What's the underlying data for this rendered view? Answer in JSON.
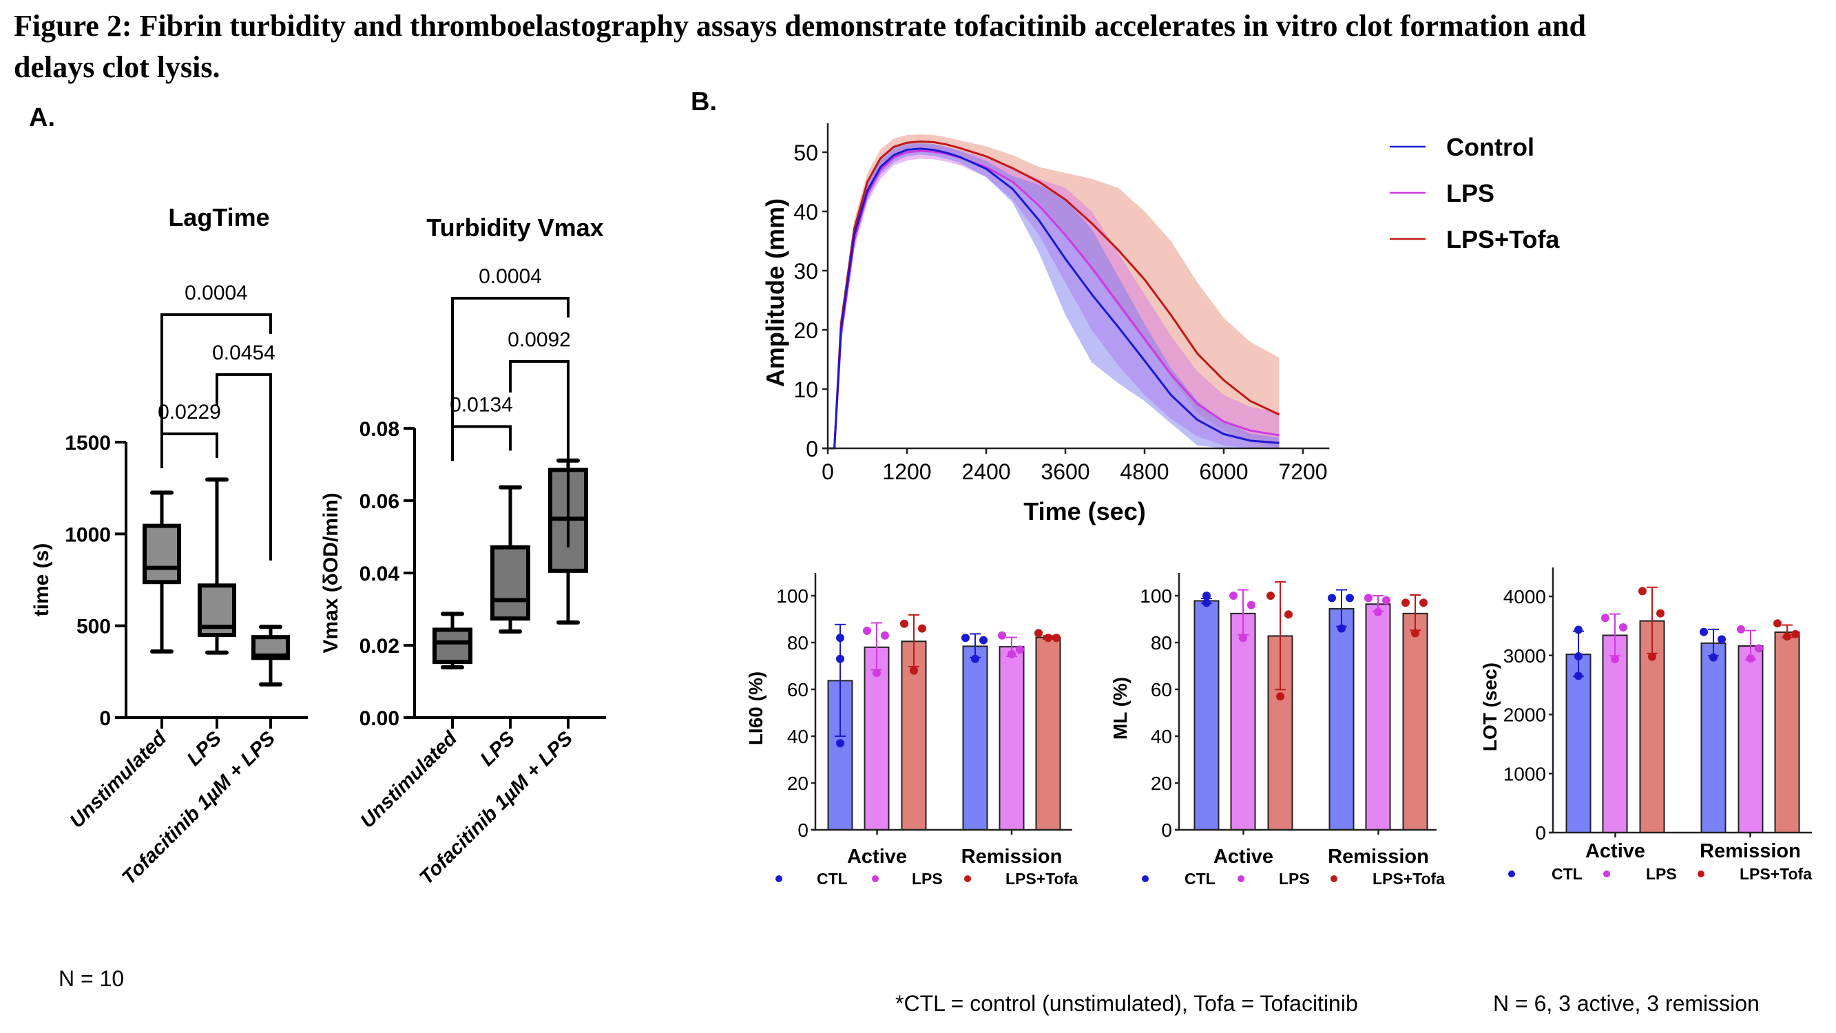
{
  "figure": {
    "title_line1": "Figure 2: Fibrin turbidity and thromboelastography assays demonstrate tofacitinib accelerates in vitro clot formation and",
    "title_line2": "delays clot lysis.",
    "panel_a_label": "A.",
    "panel_b_label": "B.",
    "panel_a_note": "N = 10",
    "footnote_abbrev": "*CTL = control (unstimulated), Tofa = Tofacitinib",
    "footnote_n": "N = 6, 3 active, 3 remission"
  },
  "colors": {
    "control": "#1a1ad0",
    "lps": "#d03ae0",
    "lps_tofa": "#c01818",
    "bar_ctl": "#7a82f7",
    "bar_lps": "#e585f3",
    "bar_tofa": "#e0807a",
    "box_light": "#8c8c8c",
    "box_dark": "#777777"
  },
  "chart_data": [
    {
      "id": "lagtime",
      "type": "box",
      "title": "LagTime",
      "ylabel": "time (s)",
      "ylim": [
        0,
        1500
      ],
      "yticks": [
        0,
        500,
        1000,
        1500
      ],
      "categories": [
        "Unstimulated",
        "LPS",
        "Tofacitinib 1µM + LPS"
      ],
      "boxes": [
        {
          "min": 360,
          "q1": 738,
          "median": 815,
          "q3": 1044,
          "max": 1225
        },
        {
          "min": 354,
          "q1": 450,
          "median": 494,
          "q3": 719,
          "max": 1296
        },
        {
          "min": 181,
          "q1": 325,
          "median": 338,
          "q3": 438,
          "max": 494
        }
      ],
      "comparisons": [
        {
          "from": 0,
          "to": 1,
          "p": "0.0229",
          "y": 1545
        },
        {
          "from": 1,
          "to": 2,
          "p": "0.0454",
          "y": 1868
        },
        {
          "from": 0,
          "to": 2,
          "p": "0.0004",
          "y": 2194
        }
      ]
    },
    {
      "id": "vmax",
      "type": "box",
      "title": "Turbidity Vmax",
      "ylabel": "Vmax (δOD/min)",
      "ylim": [
        0,
        0.08
      ],
      "yticks": [
        "0.00",
        "0.02",
        "0.04",
        "0.06",
        "0.08"
      ],
      "categories": [
        "Unstimulated",
        "LPS",
        "Tofacitinib 1µM + LPS"
      ],
      "boxes": [
        {
          "min": 0.0139,
          "q1": 0.0154,
          "median": 0.0208,
          "q3": 0.0243,
          "max": 0.0287
        },
        {
          "min": 0.0238,
          "q1": 0.0274,
          "median": 0.0325,
          "q3": 0.0471,
          "max": 0.0637
        },
        {
          "min": 0.0263,
          "q1": 0.0406,
          "median": 0.055,
          "q3": 0.0685,
          "max": 0.0711
        }
      ],
      "comparisons": [
        {
          "from": 0,
          "to": 1,
          "p": "0.0134",
          "y": 0.0805
        },
        {
          "from": 1,
          "to": 2,
          "p": "0.0092",
          "y": 0.0985
        },
        {
          "from": 0,
          "to": 2,
          "p": "0.0004",
          "y": 0.116
        }
      ]
    },
    {
      "id": "amplitude",
      "type": "line",
      "xlabel": "Time (sec)",
      "ylabel": "Amplitude (mm)",
      "xlim": [
        0,
        7200
      ],
      "ylim": [
        0,
        55
      ],
      "xticks": [
        0,
        1200,
        2400,
        3600,
        4800,
        6000,
        7200
      ],
      "yticks": [
        0,
        10,
        20,
        30,
        40,
        50
      ],
      "legend_position": "top-right",
      "x": [
        100,
        200,
        400,
        600,
        800,
        1000,
        1200,
        1400,
        1600,
        1800,
        2000,
        2400,
        2800,
        3200,
        3600,
        4000,
        4400,
        4800,
        5200,
        5600,
        6000,
        6400,
        6840
      ],
      "series": [
        {
          "name": "Control",
          "color_key": "control",
          "values": [
            0,
            20,
            36,
            43.5,
            47.5,
            49.5,
            50.4,
            50.6,
            50.4,
            49.9,
            49.2,
            47.2,
            43.8,
            38.5,
            32.0,
            26.0,
            20.5,
            14.8,
            9.0,
            4.8,
            2.4,
            1.3,
            0.9
          ],
          "lower": [
            0,
            19,
            34.5,
            42,
            46.2,
            48.3,
            49.3,
            49.6,
            49.4,
            48.9,
            48.2,
            45.8,
            41.5,
            33.0,
            22.5,
            14.5,
            11.0,
            8.0,
            4.2,
            0.5,
            0,
            0,
            0
          ],
          "upper": [
            0,
            21,
            37.5,
            45,
            48.8,
            50.7,
            51.5,
            51.6,
            51.4,
            50.9,
            50.2,
            48.5,
            46.0,
            44.5,
            42.0,
            37.0,
            29.0,
            21.0,
            13.5,
            8.0,
            4.5,
            2.5,
            1.8
          ]
        },
        {
          "name": "LPS",
          "color_key": "lps",
          "values": [
            0,
            19,
            35,
            43,
            47,
            49.1,
            50.0,
            50.2,
            50.1,
            49.7,
            49.1,
            47.5,
            45.0,
            41.0,
            36.0,
            30.5,
            24.5,
            18.5,
            12.5,
            7.5,
            4.5,
            3.0,
            2.2
          ],
          "lower": [
            0,
            18,
            33.5,
            41.5,
            45.5,
            47.8,
            48.6,
            48.9,
            48.8,
            48.4,
            47.8,
            45.8,
            42.0,
            36.0,
            28.0,
            20.0,
            14.0,
            9.0,
            5.0,
            2.0,
            0.5,
            0,
            0
          ],
          "upper": [
            0,
            20,
            36.5,
            44.5,
            48.5,
            50.4,
            51.2,
            51.4,
            51.3,
            50.9,
            50.4,
            49.0,
            47.2,
            45.5,
            44.0,
            40.0,
            33.0,
            26.0,
            19.0,
            13.0,
            9.0,
            7.0,
            6.0
          ]
        },
        {
          "name": "LPS+Tofa",
          "color_key": "lps_tofa",
          "values": [
            0,
            21,
            37,
            45,
            49,
            50.9,
            51.6,
            51.8,
            51.7,
            51.3,
            50.7,
            49.3,
            47.3,
            45.0,
            42.0,
            38.0,
            33.5,
            28.5,
            22.5,
            16.0,
            11.5,
            8.0,
            5.7
          ],
          "lower": [
            0,
            20,
            35.5,
            43.5,
            47.5,
            49.5,
            50.3,
            50.6,
            50.5,
            50.1,
            49.5,
            47.8,
            45.0,
            41.5,
            36.0,
            30.0,
            24.0,
            18.0,
            12.0,
            6.0,
            3.0,
            1.0,
            0
          ],
          "upper": [
            0,
            22,
            38.5,
            46.5,
            50.5,
            52.3,
            52.9,
            53.0,
            52.9,
            52.5,
            52.0,
            51.0,
            49.5,
            47.5,
            46.5,
            45.5,
            44.0,
            40.0,
            35.0,
            28.0,
            22.0,
            18.0,
            15.3
          ]
        }
      ]
    },
    {
      "id": "li60",
      "type": "bar",
      "ylabel": "LI60 (%)",
      "ylim": [
        0,
        110
      ],
      "yticks": [
        0,
        20,
        40,
        60,
        80,
        100
      ],
      "groups": [
        "Active",
        "Remission"
      ],
      "series_names": [
        "CTL",
        "LPS",
        "LPS+Tofa"
      ],
      "bars": [
        {
          "group": 0,
          "series": 0,
          "mean": 63.7,
          "err": [
            40,
            87.7
          ],
          "points": [
            82,
            73,
            37
          ]
        },
        {
          "group": 0,
          "series": 1,
          "mean": 78,
          "err": [
            68.4,
            88.4
          ],
          "points": [
            85,
            83,
            67
          ]
        },
        {
          "group": 0,
          "series": 2,
          "mean": 80.5,
          "err": [
            69.7,
            91.8
          ],
          "points": [
            88,
            86,
            68
          ]
        },
        {
          "group": 1,
          "series": 0,
          "mean": 78.4,
          "err": [
            73.6,
            83.7
          ],
          "points": [
            82,
            81,
            73
          ]
        },
        {
          "group": 1,
          "series": 1,
          "mean": 78.2,
          "err": [
            74.1,
            82.2
          ],
          "points": [
            83,
            77,
            75
          ]
        },
        {
          "group": 1,
          "series": 2,
          "mean": 82.2,
          "err": [
            81.5,
            82.9
          ],
          "points": [
            84,
            82,
            82
          ]
        }
      ]
    },
    {
      "id": "ml",
      "type": "bar",
      "ylabel": "ML (%)",
      "ylim": [
        0,
        110
      ],
      "yticks": [
        0,
        20,
        40,
        60,
        80,
        100
      ],
      "groups": [
        "Active",
        "Remission"
      ],
      "series_names": [
        "CTL",
        "LPS",
        "LPS+Tofa"
      ],
      "bars": [
        {
          "group": 0,
          "series": 0,
          "mean": 97.8,
          "err": [
            96.8,
            98.8
          ],
          "points": [
            100,
            97,
            97
          ]
        },
        {
          "group": 0,
          "series": 1,
          "mean": 92.4,
          "err": [
            83.3,
            102.5
          ],
          "points": [
            100,
            96,
            82
          ]
        },
        {
          "group": 0,
          "series": 2,
          "mean": 82.8,
          "err": [
            59.9,
            105.9
          ],
          "points": [
            100,
            92,
            57
          ]
        },
        {
          "group": 1,
          "series": 0,
          "mean": 94.4,
          "err": [
            86.9,
            102.5
          ],
          "points": [
            99,
            99,
            86
          ]
        },
        {
          "group": 1,
          "series": 1,
          "mean": 96.4,
          "err": [
            93.3,
            100
          ],
          "points": [
            99,
            98,
            93
          ]
        },
        {
          "group": 1,
          "series": 2,
          "mean": 92.4,
          "err": [
            85.2,
            100.3
          ],
          "points": [
            97,
            97,
            84
          ]
        }
      ]
    },
    {
      "id": "lot",
      "type": "bar",
      "ylabel": "LOT (sec)",
      "ylim": [
        0,
        4500
      ],
      "yticks": [
        0,
        1000,
        2000,
        3000,
        4000
      ],
      "groups": [
        "Active",
        "Remission"
      ],
      "series_names": [
        "CTL",
        "LPS",
        "LPS+Tofa"
      ],
      "bars": [
        {
          "group": 0,
          "series": 0,
          "mean": 3018,
          "err": [
            2646,
            3410
          ],
          "points": [
            3434,
            2986,
            2654
          ]
        },
        {
          "group": 0,
          "series": 1,
          "mean": 3341,
          "err": [
            2994,
            3701
          ],
          "points": [
            3636,
            3475,
            2937
          ]
        },
        {
          "group": 0,
          "series": 2,
          "mean": 3584,
          "err": [
            3034,
            4154
          ],
          "points": [
            4089,
            3713,
            2978
          ]
        },
        {
          "group": 1,
          "series": 0,
          "mean": 3208,
          "err": [
            2994,
            3442
          ],
          "points": [
            3398,
            3273,
            2966
          ]
        },
        {
          "group": 1,
          "series": 1,
          "mean": 3160,
          "err": [
            2929,
            3422
          ],
          "points": [
            3442,
            3119,
            2949
          ]
        },
        {
          "group": 1,
          "series": 2,
          "mean": 3394,
          "err": [
            3305,
            3515
          ],
          "points": [
            3543,
            3362,
            3321
          ]
        }
      ]
    }
  ]
}
